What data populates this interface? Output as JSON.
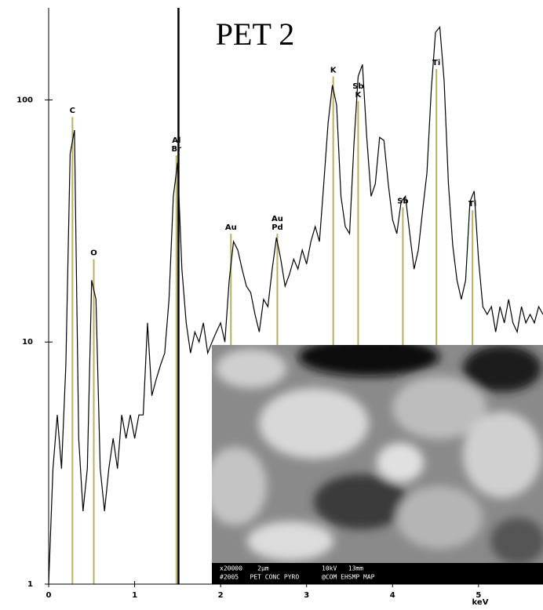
{
  "chart_data": {
    "type": "line",
    "title": "PET 2",
    "x_label": "keV",
    "log_y": true,
    "xlim": [
      0,
      5.75
    ],
    "ylim": [
      1,
      240
    ],
    "xticks": [
      0,
      1,
      2,
      3,
      4,
      5
    ],
    "yticks": [
      1,
      10,
      100
    ],
    "cursor": 1.51,
    "marker_color": "#b8b060",
    "series": [
      {
        "color": "#000000",
        "x": [
          0,
          0.05,
          0.1,
          0.15,
          0.2,
          0.25,
          0.3,
          0.35,
          0.4,
          0.45,
          0.5,
          0.55,
          0.6,
          0.65,
          0.7,
          0.75,
          0.8,
          0.85,
          0.9,
          0.95,
          1,
          1.05,
          1.1,
          1.15,
          1.2,
          1.25,
          1.3,
          1.35,
          1.4,
          1.45,
          1.5,
          1.55,
          1.6,
          1.65,
          1.7,
          1.75,
          1.8,
          1.85,
          1.9,
          1.95,
          2,
          2.05,
          2.1,
          2.15,
          2.2,
          2.25,
          2.3,
          2.35,
          2.4,
          2.45,
          2.5,
          2.55,
          2.6,
          2.65,
          2.7,
          2.75,
          2.8,
          2.85,
          2.9,
          2.95,
          3,
          3.05,
          3.1,
          3.15,
          3.2,
          3.25,
          3.3,
          3.35,
          3.4,
          3.45,
          3.5,
          3.55,
          3.6,
          3.65,
          3.7,
          3.75,
          3.8,
          3.85,
          3.9,
          3.95,
          4,
          4.05,
          4.1,
          4.15,
          4.2,
          4.25,
          4.3,
          4.35,
          4.4,
          4.45,
          4.5,
          4.55,
          4.6,
          4.65,
          4.7,
          4.75,
          4.8,
          4.85,
          4.9,
          4.95,
          5,
          5.05,
          5.1,
          5.15,
          5.2,
          5.25,
          5.3,
          5.35,
          5.4,
          5.45,
          5.5,
          5.55,
          5.6,
          5.65,
          5.7,
          5.75
        ],
        "values": [
          1,
          3,
          5,
          3,
          8,
          60,
          75,
          4,
          2,
          3,
          18,
          15,
          3,
          2,
          3,
          4,
          3,
          5,
          4,
          5,
          4,
          5,
          5,
          12,
          6,
          7,
          8,
          9,
          15,
          40,
          55,
          20,
          12,
          9,
          11,
          10,
          12,
          9,
          10,
          11,
          12,
          10,
          18,
          26,
          24,
          20,
          17,
          16,
          13,
          11,
          15,
          14,
          20,
          27,
          22,
          17,
          19,
          22,
          20,
          24,
          21,
          26,
          30,
          26,
          45,
          80,
          115,
          95,
          40,
          30,
          28,
          65,
          125,
          140,
          70,
          40,
          45,
          70,
          68,
          45,
          32,
          28,
          38,
          40,
          28,
          20,
          24,
          35,
          50,
          110,
          190,
          200,
          120,
          45,
          25,
          18,
          15,
          18,
          38,
          42,
          22,
          14,
          13,
          14,
          11,
          14,
          12,
          15,
          12,
          11,
          14,
          12,
          13,
          12,
          14,
          13
        ]
      }
    ],
    "markers": [
      {
        "energy": 0.277,
        "height": 85,
        "labels": [
          "C"
        ]
      },
      {
        "energy": 0.525,
        "height": 22,
        "labels": [
          "O"
        ]
      },
      {
        "energy": 1.486,
        "height": 59,
        "labels": [
          "Al",
          "Br"
        ]
      },
      {
        "energy": 2.12,
        "height": 28,
        "labels": [
          "Au"
        ]
      },
      {
        "energy": 2.66,
        "height": 28,
        "labels": [
          "Au",
          "Pd"
        ]
      },
      {
        "energy": 3.31,
        "height": 125,
        "labels": [
          "K"
        ]
      },
      {
        "energy": 3.6,
        "height": 99,
        "labels": [
          "Sb",
          "K"
        ]
      },
      {
        "energy": 4.12,
        "height": 36,
        "labels": [
          "Sb"
        ]
      },
      {
        "energy": 4.51,
        "height": 134,
        "labels": [
          "Ti"
        ]
      },
      {
        "energy": 4.93,
        "height": 35,
        "labels": [
          "Ti"
        ]
      }
    ],
    "inset_caption": [
      "x20000    2µm              10kV   13mm",
      "#2005   PET CONC PYRO      @COM EHSMP MAP"
    ]
  }
}
